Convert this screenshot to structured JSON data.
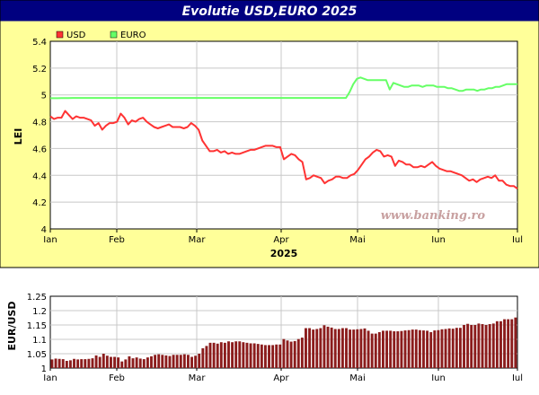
{
  "chart_data": [
    {
      "type": "line",
      "title": "Evolutie USD,EURO 2025",
      "xlabel": "2025",
      "ylabel": "LEI",
      "ylim": [
        4,
        5.4
      ],
      "yticks": [
        "4",
        "4.2",
        "4.4",
        "4.6",
        "4.8",
        "5",
        "5.2",
        "5.4"
      ],
      "months": [
        "Ian",
        "Feb",
        "Mar",
        "Apr",
        "Mai",
        "Iun",
        "Iul"
      ],
      "legend": [
        "USD",
        "EURO"
      ],
      "watermark": "www.banking.ro",
      "grid": true,
      "legend_position": "top-left",
      "series": [
        {
          "name": "USD",
          "color": "#ff3333",
          "values": [
            4.84,
            4.82,
            4.83,
            4.83,
            4.88,
            4.85,
            4.82,
            4.84,
            4.83,
            4.83,
            4.82,
            4.81,
            4.77,
            4.79,
            4.74,
            4.77,
            4.79,
            4.79,
            4.8,
            4.86,
            4.83,
            4.78,
            4.81,
            4.8,
            4.82,
            4.83,
            4.8,
            4.78,
            4.76,
            4.75,
            4.76,
            4.77,
            4.78,
            4.76,
            4.76,
            4.76,
            4.75,
            4.76,
            4.79,
            4.77,
            4.74,
            4.66,
            4.62,
            4.58,
            4.58,
            4.59,
            4.57,
            4.58,
            4.56,
            4.57,
            4.56,
            4.56,
            4.57,
            4.58,
            4.59,
            4.59,
            4.6,
            4.61,
            4.62,
            4.62,
            4.62,
            4.61,
            4.61,
            4.52,
            4.54,
            4.56,
            4.55,
            4.52,
            4.5,
            4.37,
            4.38,
            4.4,
            4.39,
            4.38,
            4.34,
            4.36,
            4.37,
            4.39,
            4.39,
            4.38,
            4.38,
            4.4,
            4.41,
            4.44,
            4.48,
            4.52,
            4.54,
            4.57,
            4.59,
            4.58,
            4.54,
            4.55,
            4.54,
            4.47,
            4.51,
            4.5,
            4.48,
            4.48,
            4.46,
            4.46,
            4.47,
            4.46,
            4.48,
            4.5,
            4.47,
            4.45,
            4.44,
            4.43,
            4.43,
            4.42,
            4.41,
            4.4,
            4.38,
            4.36,
            4.37,
            4.35,
            4.37,
            4.38,
            4.39,
            4.38,
            4.4,
            4.36,
            4.36,
            4.33,
            4.32,
            4.32,
            4.3
          ]
        },
        {
          "name": "EURO",
          "color": "#66ff66",
          "values": [
            4.975,
            4.975,
            4.975,
            4.976,
            4.976,
            4.976,
            4.977,
            4.977,
            4.977,
            4.977,
            4.977,
            4.977,
            4.977,
            4.977,
            4.977,
            4.977,
            4.977,
            4.977,
            4.977,
            4.977,
            4.977,
            4.977,
            4.977,
            4.977,
            4.977,
            4.977,
            4.977,
            4.977,
            4.977,
            4.977,
            4.977,
            4.977,
            4.977,
            4.977,
            4.977,
            4.977,
            4.977,
            4.977,
            4.977,
            4.977,
            4.977,
            4.977,
            4.977,
            4.977,
            4.977,
            4.977,
            4.977,
            4.977,
            4.977,
            4.977,
            4.977,
            4.977,
            4.977,
            4.977,
            4.977,
            4.977,
            4.977,
            4.977,
            4.977,
            4.977,
            4.977,
            4.977,
            4.977,
            4.977,
            4.977,
            4.977,
            4.977,
            4.977,
            4.977,
            4.977,
            4.977,
            4.977,
            4.977,
            4.977,
            4.977,
            4.977,
            4.977,
            4.977,
            4.977,
            4.977,
            4.977,
            4.977,
            5.02,
            5.08,
            5.12,
            5.13,
            5.12,
            5.11,
            5.11,
            5.11,
            5.11,
            5.11,
            5.11,
            5.04,
            5.09,
            5.08,
            5.07,
            5.06,
            5.06,
            5.07,
            5.07,
            5.07,
            5.06,
            5.07,
            5.07,
            5.07,
            5.06,
            5.06,
            5.06,
            5.05,
            5.05,
            5.04,
            5.03,
            5.03,
            5.04,
            5.04,
            5.04,
            5.03,
            5.04,
            5.04,
            5.05,
            5.05,
            5.06,
            5.06,
            5.07,
            5.08,
            5.08,
            5.08,
            5.08
          ]
        }
      ]
    },
    {
      "type": "bar",
      "ylabel": "EUR/USD",
      "ylim": [
        1,
        1.25
      ],
      "yticks": [
        "1",
        "1.05",
        "1.1",
        "1.15",
        "1.2",
        "1.25"
      ],
      "months": [
        "Ian",
        "Feb",
        "Mar",
        "Apr",
        "Mai",
        "Iun",
        "Iul"
      ],
      "grid": true,
      "series": [
        {
          "name": "EUR/USD",
          "color": "#8b1c1c",
          "values": [
            1.03,
            1.033,
            1.032,
            1.031,
            1.025,
            1.027,
            1.032,
            1.03,
            1.031,
            1.031,
            1.032,
            1.034,
            1.044,
            1.039,
            1.05,
            1.043,
            1.039,
            1.039,
            1.037,
            1.023,
            1.03,
            1.041,
            1.034,
            1.037,
            1.033,
            1.031,
            1.037,
            1.041,
            1.046,
            1.048,
            1.046,
            1.044,
            1.042,
            1.046,
            1.046,
            1.046,
            1.048,
            1.046,
            1.039,
            1.043,
            1.05,
            1.069,
            1.077,
            1.088,
            1.088,
            1.085,
            1.09,
            1.088,
            1.093,
            1.09,
            1.093,
            1.093,
            1.09,
            1.088,
            1.086,
            1.086,
            1.084,
            1.082,
            1.08,
            1.08,
            1.08,
            1.082,
            1.082,
            1.101,
            1.096,
            1.092,
            1.094,
            1.101,
            1.106,
            1.139,
            1.139,
            1.134,
            1.136,
            1.139,
            1.149,
            1.144,
            1.141,
            1.136,
            1.136,
            1.139,
            1.139,
            1.134,
            1.134,
            1.135,
            1.136,
            1.138,
            1.13,
            1.12,
            1.12,
            1.125,
            1.13,
            1.13,
            1.13,
            1.128,
            1.128,
            1.129,
            1.131,
            1.132,
            1.134,
            1.134,
            1.132,
            1.131,
            1.13,
            1.125,
            1.131,
            1.132,
            1.135,
            1.136,
            1.138,
            1.137,
            1.14,
            1.14,
            1.15,
            1.154,
            1.15,
            1.15,
            1.155,
            1.153,
            1.15,
            1.153,
            1.155,
            1.163,
            1.163,
            1.17,
            1.17,
            1.17,
            1.176
          ]
        }
      ]
    }
  ]
}
